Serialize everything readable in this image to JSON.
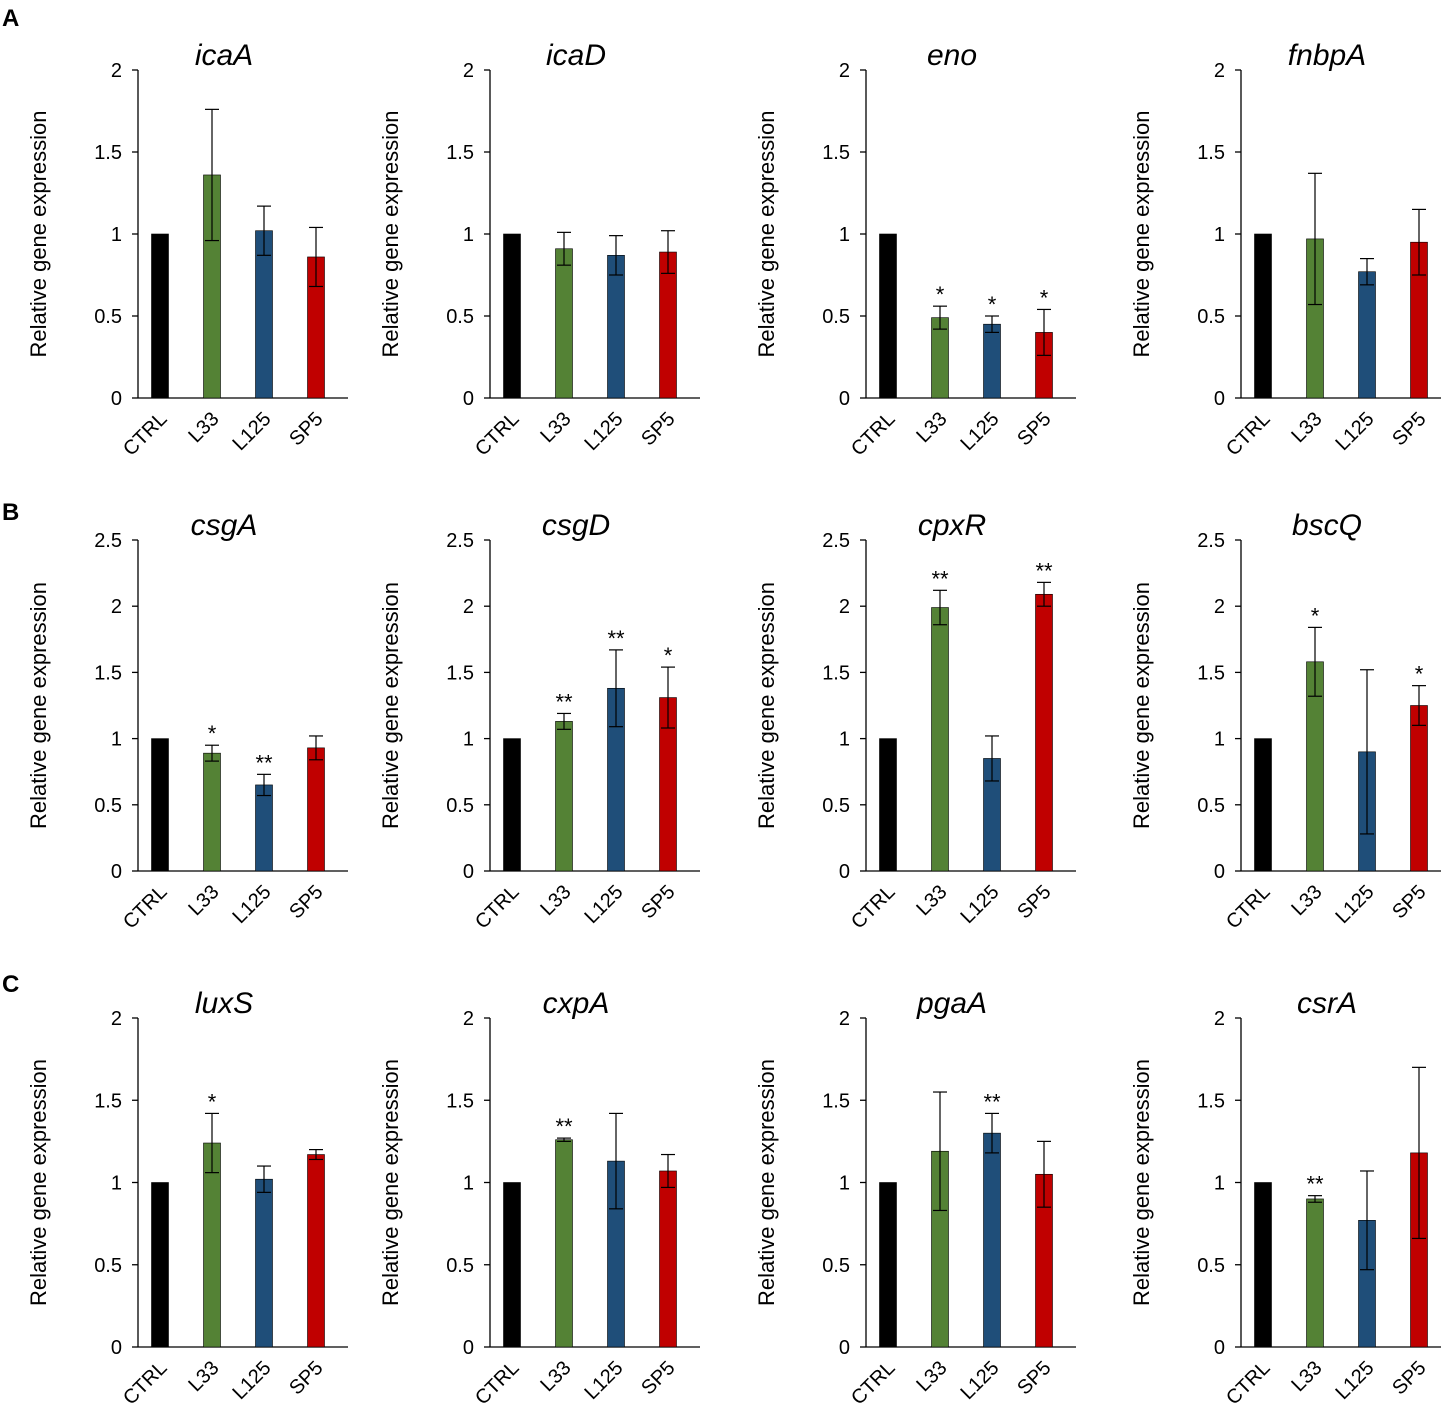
{
  "panel_labels": [
    "A",
    "B",
    "C"
  ],
  "colors": {
    "CTRL": "#000000",
    "L33": "#548235",
    "L125": "#1f4e79",
    "SP5": "#c00000"
  },
  "chart_data": [
    {
      "type": "bar",
      "panel": "A",
      "title": "icaA",
      "ylabel": "Relative gene expression",
      "categories": [
        "CTRL",
        "L33",
        "L125",
        "SP5"
      ],
      "values": [
        1.0,
        1.36,
        1.02,
        0.86
      ],
      "errors": [
        0,
        0.4,
        0.15,
        0.18
      ],
      "significance": [
        "",
        "",
        "",
        ""
      ],
      "ylim": [
        0,
        2
      ],
      "yticks": [
        "0",
        "0.5",
        "1",
        "1.5",
        "2"
      ]
    },
    {
      "type": "bar",
      "panel": "A",
      "title": "icaD",
      "ylabel": "Relative gene expression",
      "categories": [
        "CTRL",
        "L33",
        "L125",
        "SP5"
      ],
      "values": [
        1.0,
        0.91,
        0.87,
        0.89
      ],
      "errors": [
        0,
        0.1,
        0.12,
        0.13
      ],
      "significance": [
        "",
        "",
        "",
        ""
      ],
      "ylim": [
        0,
        2
      ],
      "yticks": [
        "0",
        "0.5",
        "1",
        "1.5",
        "2"
      ]
    },
    {
      "type": "bar",
      "panel": "A",
      "title": "eno",
      "ylabel": "Relative gene expression",
      "categories": [
        "CTRL",
        "L33",
        "L125",
        "SP5"
      ],
      "values": [
        1.0,
        0.49,
        0.45,
        0.4
      ],
      "errors": [
        0,
        0.07,
        0.05,
        0.14
      ],
      "significance": [
        "",
        "*",
        "*",
        "*"
      ],
      "ylim": [
        0,
        2
      ],
      "yticks": [
        "0",
        "0.5",
        "1",
        "1.5",
        "2"
      ]
    },
    {
      "type": "bar",
      "panel": "A",
      "title": "fnbpA",
      "ylabel": "Relative gene expression",
      "categories": [
        "CTRL",
        "L33",
        "L125",
        "SP5"
      ],
      "values": [
        1.0,
        0.97,
        0.77,
        0.95
      ],
      "errors": [
        0,
        0.4,
        0.08,
        0.2
      ],
      "significance": [
        "",
        "",
        "",
        ""
      ],
      "ylim": [
        0,
        2
      ],
      "yticks": [
        "0",
        "0.5",
        "1",
        "1.5",
        "2"
      ]
    },
    {
      "type": "bar",
      "panel": "B",
      "title": "csgA",
      "ylabel": "Relative gene expression",
      "categories": [
        "CTRL",
        "L33",
        "L125",
        "SP5"
      ],
      "values": [
        1.0,
        0.89,
        0.65,
        0.93
      ],
      "errors": [
        0,
        0.06,
        0.08,
        0.09
      ],
      "significance": [
        "",
        "*",
        "**",
        ""
      ],
      "ylim": [
        0,
        2.5
      ],
      "yticks": [
        "0",
        "0.5",
        "1",
        "1.5",
        "2",
        "2.5"
      ]
    },
    {
      "type": "bar",
      "panel": "B",
      "title": "csgD",
      "ylabel": "Relative gene expression",
      "categories": [
        "CTRL",
        "L33",
        "L125",
        "SP5"
      ],
      "values": [
        1.0,
        1.13,
        1.38,
        1.31
      ],
      "errors": [
        0,
        0.06,
        0.29,
        0.23
      ],
      "significance": [
        "",
        "**",
        "**",
        "*"
      ],
      "ylim": [
        0,
        2.5
      ],
      "yticks": [
        "0",
        "0.5",
        "1",
        "1.5",
        "2",
        "2.5"
      ]
    },
    {
      "type": "bar",
      "panel": "B",
      "title": "cpxR",
      "ylabel": "Relative gene expression",
      "categories": [
        "CTRL",
        "L33",
        "L125",
        "SP5"
      ],
      "values": [
        1.0,
        1.99,
        0.85,
        2.09
      ],
      "errors": [
        0,
        0.13,
        0.17,
        0.09
      ],
      "significance": [
        "",
        "**",
        "",
        "**"
      ],
      "ylim": [
        0,
        2.5
      ],
      "yticks": [
        "0",
        "0.5",
        "1",
        "1.5",
        "2",
        "2.5"
      ]
    },
    {
      "type": "bar",
      "panel": "B",
      "title": "bscQ",
      "ylabel": "Relative gene expression",
      "categories": [
        "CTRL",
        "L33",
        "L125",
        "SP5"
      ],
      "values": [
        1.0,
        1.58,
        0.9,
        1.25
      ],
      "errors": [
        0,
        0.26,
        0.62,
        0.15
      ],
      "significance": [
        "",
        "*",
        "",
        "*"
      ],
      "ylim": [
        0,
        2.5
      ],
      "yticks": [
        "0",
        "0.5",
        "1",
        "1.5",
        "2",
        "2.5"
      ]
    },
    {
      "type": "bar",
      "panel": "C",
      "title": "luxS",
      "ylabel": "Relative gene expression",
      "categories": [
        "CTRL",
        "L33",
        "L125",
        "SP5"
      ],
      "values": [
        1.0,
        1.24,
        1.02,
        1.17
      ],
      "errors": [
        0,
        0.18,
        0.08,
        0.03
      ],
      "significance": [
        "",
        "*",
        "",
        ""
      ],
      "ylim": [
        0,
        2
      ],
      "yticks": [
        "0",
        "0.5",
        "1",
        "1.5",
        "2"
      ]
    },
    {
      "type": "bar",
      "panel": "C",
      "title": "cxpA",
      "ylabel": "Relative gene expression",
      "categories": [
        "CTRL",
        "L33",
        "L125",
        "SP5"
      ],
      "values": [
        1.0,
        1.26,
        1.13,
        1.07
      ],
      "errors": [
        0,
        0.01,
        0.29,
        0.1
      ],
      "significance": [
        "",
        "**",
        "",
        ""
      ],
      "ylim": [
        0,
        2
      ],
      "yticks": [
        "0",
        "0.5",
        "1",
        "1.5",
        "2"
      ]
    },
    {
      "type": "bar",
      "panel": "C",
      "title": "pgaA",
      "ylabel": "Relative gene expression",
      "categories": [
        "CTRL",
        "L33",
        "L125",
        "SP5"
      ],
      "values": [
        1.0,
        1.19,
        1.3,
        1.05
      ],
      "errors": [
        0,
        0.36,
        0.12,
        0.2
      ],
      "significance": [
        "",
        "",
        "**",
        ""
      ],
      "ylim": [
        0,
        2
      ],
      "yticks": [
        "0",
        "0.5",
        "1",
        "1.5",
        "2"
      ]
    },
    {
      "type": "bar",
      "panel": "C",
      "title": "csrA",
      "ylabel": "Relative gene expression",
      "categories": [
        "CTRL",
        "L33",
        "L125",
        "SP5"
      ],
      "values": [
        1.0,
        0.9,
        0.77,
        1.18
      ],
      "errors": [
        0,
        0.02,
        0.3,
        0.52
      ],
      "significance": [
        "",
        "**",
        "",
        ""
      ],
      "ylim": [
        0,
        2
      ],
      "yticks": [
        "0",
        "0.5",
        "1",
        "1.5",
        "2"
      ]
    }
  ]
}
